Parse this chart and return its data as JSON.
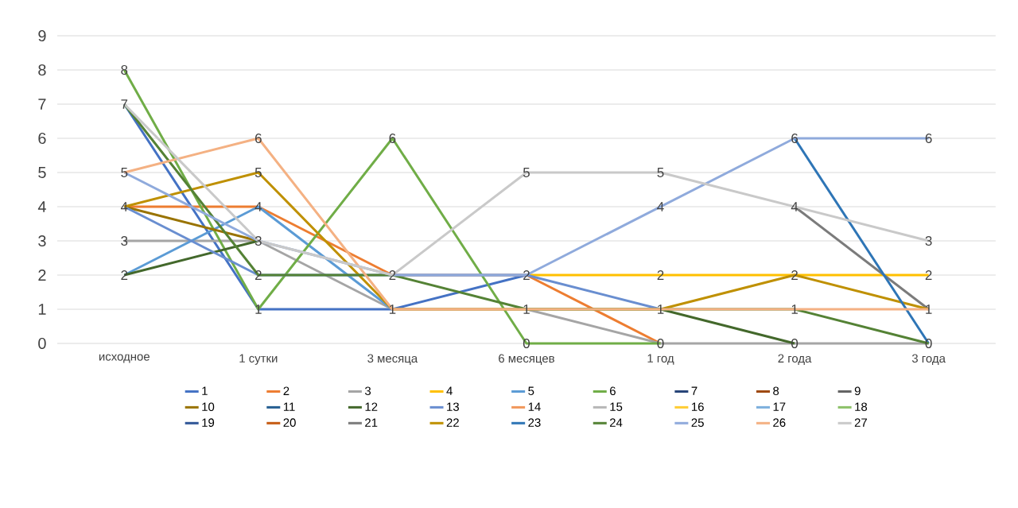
{
  "chart_data": {
    "type": "line",
    "categories": [
      "исходное",
      "1 сутки",
      "3 месяца",
      "6 месяцев",
      "1 год",
      "2 года",
      "3 года"
    ],
    "ylim": [
      0,
      9
    ],
    "yticks": [
      0,
      1,
      2,
      3,
      4,
      5,
      6,
      7,
      8,
      9
    ],
    "grid": "y",
    "legend": "bottom",
    "marker": "none",
    "line_style": "solid",
    "series": [
      {
        "name": "1",
        "color": "#4472c4",
        "values": [
          7,
          1,
          1,
          2,
          null,
          null,
          null
        ]
      },
      {
        "name": "2",
        "color": "#ed7d31",
        "values": [
          4,
          4,
          2,
          2,
          0,
          null,
          null
        ]
      },
      {
        "name": "3",
        "color": "#a5a5a5",
        "values": [
          3,
          3,
          1,
          1,
          0,
          0,
          0
        ],
        "value_labels": [
          "3",
          null,
          null,
          null,
          null,
          null,
          null
        ]
      },
      {
        "name": "4",
        "color": "#ffc000",
        "values": [
          null,
          null,
          null,
          2,
          2,
          2,
          2
        ],
        "value_labels": [
          null,
          null,
          null,
          null,
          "2",
          null,
          "2"
        ]
      },
      {
        "name": "5",
        "color": "#5b9bd5",
        "values": [
          2,
          4,
          1,
          null,
          null,
          null,
          null
        ],
        "value_labels": [
          null,
          "4",
          null,
          null,
          null,
          null,
          null
        ]
      },
      {
        "name": "6",
        "color": "#70ad47",
        "values": [
          8,
          1,
          6,
          0,
          0,
          null,
          null
        ],
        "value_labels": [
          "8",
          "1",
          "6",
          "0",
          "0",
          null,
          null
        ]
      },
      {
        "name": "7",
        "color": "#264478",
        "values": [
          null,
          null,
          null,
          null,
          null,
          null,
          null
        ]
      },
      {
        "name": "8",
        "color": "#9e480e",
        "values": [
          null,
          null,
          null,
          null,
          null,
          null,
          null
        ]
      },
      {
        "name": "9",
        "color": "#636363",
        "values": [
          null,
          null,
          null,
          null,
          null,
          null,
          null
        ]
      },
      {
        "name": "10",
        "color": "#997300",
        "values": [
          4,
          3,
          null,
          null,
          null,
          null,
          null
        ]
      },
      {
        "name": "11",
        "color": "#255e91",
        "values": [
          null,
          null,
          null,
          null,
          null,
          null,
          null
        ]
      },
      {
        "name": "12",
        "color": "#43682b",
        "values": [
          2,
          3,
          null,
          null,
          1,
          0,
          null
        ],
        "value_labels": [
          "2",
          null,
          null,
          null,
          null,
          "0",
          null
        ]
      },
      {
        "name": "13",
        "color": "#698ed0",
        "values": [
          4,
          2,
          2,
          2,
          1,
          null,
          null
        ]
      },
      {
        "name": "14",
        "color": "#f1975a",
        "values": [
          null,
          null,
          null,
          null,
          null,
          null,
          null
        ]
      },
      {
        "name": "15",
        "color": "#b7b7b7",
        "values": [
          null,
          null,
          null,
          null,
          null,
          null,
          null
        ]
      },
      {
        "name": "16",
        "color": "#ffcd33",
        "values": [
          null,
          null,
          null,
          null,
          null,
          null,
          null
        ]
      },
      {
        "name": "17",
        "color": "#7cafdd",
        "values": [
          null,
          null,
          null,
          null,
          null,
          null,
          null
        ]
      },
      {
        "name": "18",
        "color": "#8cc168",
        "values": [
          null,
          null,
          null,
          null,
          null,
          null,
          null
        ]
      },
      {
        "name": "19",
        "color": "#2f5597",
        "values": [
          null,
          null,
          null,
          null,
          null,
          null,
          null
        ]
      },
      {
        "name": "20",
        "color": "#c55a11",
        "values": [
          null,
          null,
          null,
          null,
          null,
          null,
          null
        ]
      },
      {
        "name": "21",
        "color": "#7b7b7b",
        "values": [
          null,
          null,
          null,
          null,
          null,
          4,
          1
        ]
      },
      {
        "name": "22",
        "color": "#bf9000",
        "values": [
          4,
          5,
          1,
          1,
          1,
          2,
          1
        ],
        "value_labels": [
          "4",
          "5",
          null,
          null,
          null,
          "2",
          null
        ]
      },
      {
        "name": "23",
        "color": "#2e75b6",
        "values": [
          null,
          null,
          null,
          null,
          null,
          6,
          0
        ]
      },
      {
        "name": "24",
        "color": "#548235",
        "values": [
          7,
          2,
          2,
          1,
          1,
          1,
          0
        ],
        "value_labels": [
          null,
          "2",
          null,
          null,
          null,
          null,
          "0"
        ]
      },
      {
        "name": "25",
        "color": "#8faadc",
        "values": [
          5,
          3,
          2,
          2,
          4,
          6,
          6
        ],
        "value_labels": [
          null,
          null,
          null,
          "2",
          "4",
          "6",
          "6"
        ]
      },
      {
        "name": "26",
        "color": "#f4b183",
        "values": [
          5,
          6,
          1,
          1,
          1,
          1,
          1
        ],
        "value_labels": [
          "5",
          "6",
          "1",
          "1",
          "1",
          "1",
          "1"
        ]
      },
      {
        "name": "27",
        "color": "#c9c9c9",
        "values": [
          7,
          3,
          2,
          5,
          5,
          4,
          3
        ],
        "value_labels": [
          "7",
          "3",
          "2",
          "5",
          "5",
          "4",
          "3"
        ]
      }
    ]
  }
}
